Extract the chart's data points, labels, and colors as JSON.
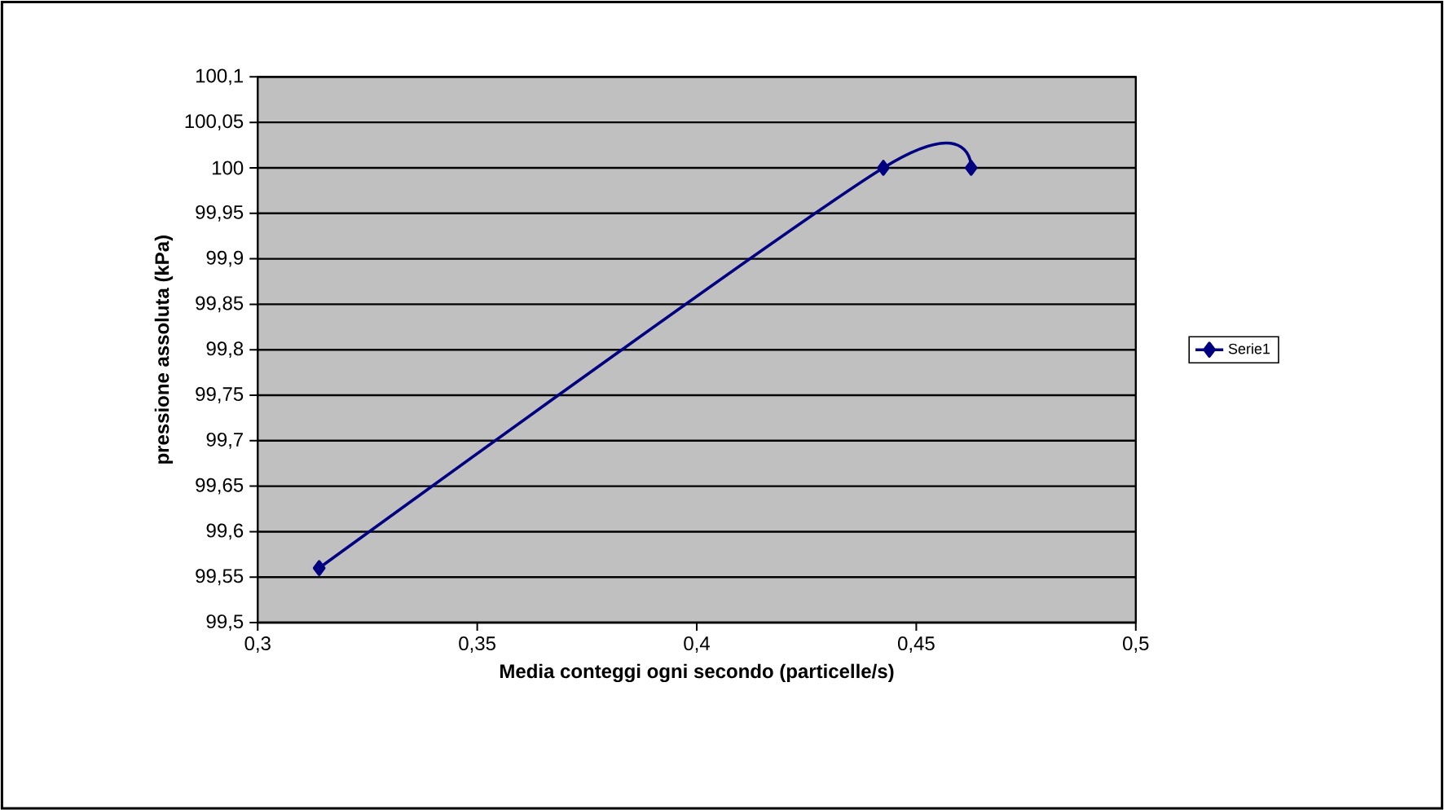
{
  "chart_data": {
    "type": "line",
    "xlabel": "Media conteggi ogni secondo (particelle/s)",
    "ylabel": "pressione assoluta (kPa)",
    "x": [
      0.314,
      0.4425,
      0.4625
    ],
    "series": [
      {
        "name": "Serie1",
        "color": "#000080",
        "values": [
          99.56,
          100,
          100
        ]
      }
    ],
    "xlim": [
      0.3,
      0.5
    ],
    "xticks": [
      {
        "value": 0.3,
        "label": "0,3"
      },
      {
        "value": 0.35,
        "label": "0,35"
      },
      {
        "value": 0.4,
        "label": "0,4"
      },
      {
        "value": 0.45,
        "label": "0,45"
      },
      {
        "value": 0.5,
        "label": "0,5"
      }
    ],
    "ylim": [
      99.5,
      100.1
    ],
    "yticks": [
      {
        "value": 99.5,
        "label": "99,5"
      },
      {
        "value": 99.55,
        "label": "99,55"
      },
      {
        "value": 99.6,
        "label": "99,6"
      },
      {
        "value": 99.65,
        "label": "99,65"
      },
      {
        "value": 99.7,
        "label": "99,7"
      },
      {
        "value": 99.75,
        "label": "99,75"
      },
      {
        "value": 99.8,
        "label": "99,8"
      },
      {
        "value": 99.85,
        "label": "99,85"
      },
      {
        "value": 99.9,
        "label": "99,9"
      },
      {
        "value": 99.95,
        "label": "99,95"
      },
      {
        "value": 100,
        "label": "100"
      },
      {
        "value": 100.05,
        "label": "100,05"
      },
      {
        "value": 100.1,
        "label": "100,1"
      }
    ],
    "grid": "y",
    "legend": "right",
    "marker": "diamond",
    "line_style": "solid"
  }
}
